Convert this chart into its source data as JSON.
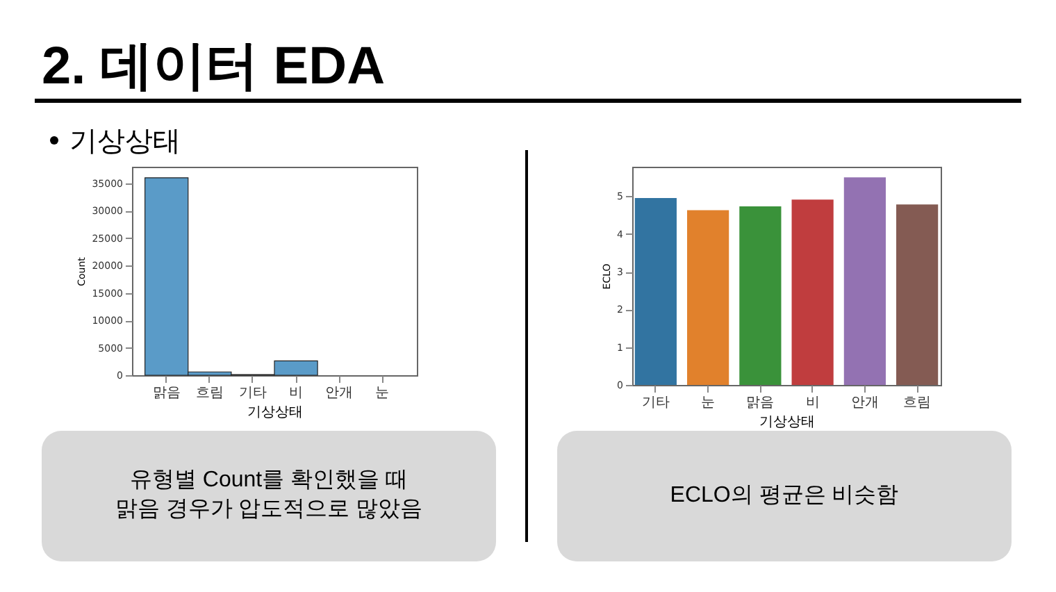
{
  "chart_data": [
    {
      "type": "bar",
      "title": "2. 데이터 EDA",
      "subtitle": "기상상태",
      "xlabel": "기상상태",
      "ylabel": "Count",
      "categories": [
        "맑음",
        "흐림",
        "기타",
        "비",
        "안개",
        "눈"
      ],
      "values": [
        36000,
        600,
        100,
        2600,
        null,
        null
      ],
      "color": "#5a9bc8",
      "ylim": [
        0,
        38000
      ],
      "yticks": [
        0,
        5000,
        10000,
        15000,
        20000,
        25000,
        30000,
        35000
      ],
      "annotations": [
        "유형별 Count를 확인했을 때\n맑음 경우가 압도적으로 많았음"
      ]
    },
    {
      "type": "bar",
      "xlabel": "기상상태",
      "ylabel": "ECLO",
      "categories": [
        "기타",
        "눈",
        "맑음",
        "비",
        "안개",
        "흐림"
      ],
      "values": [
        4.95,
        4.63,
        4.73,
        4.91,
        5.5,
        4.78
      ],
      "colors": [
        "#3274a1",
        "#e1812c",
        "#3a923a",
        "#c03d3e",
        "#9372b2",
        "#845b53"
      ],
      "ylim": [
        0,
        5.78
      ],
      "yticks": [
        0,
        1,
        2,
        3,
        4,
        5
      ],
      "annotations": [
        "ECLO의 평균은 비슷함"
      ]
    }
  ]
}
